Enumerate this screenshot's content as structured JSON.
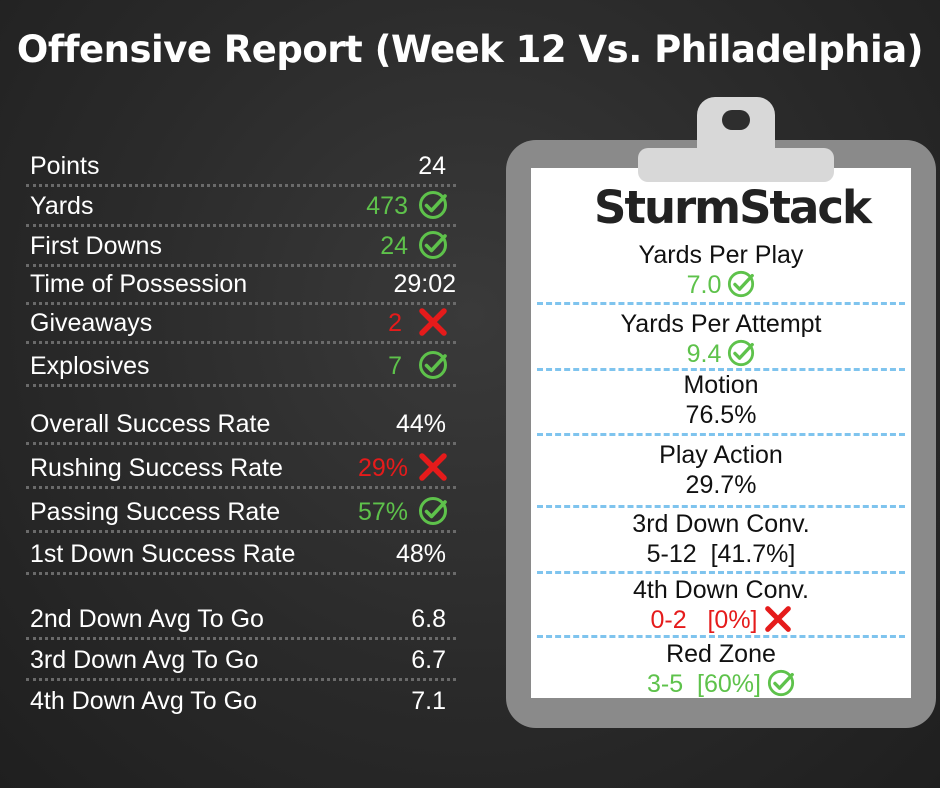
{
  "title": "Offensive Report (Week 12 Vs. Philadelphia)",
  "brand": "SturmStack",
  "colors": {
    "good": "#5ec24b",
    "bad": "#e51b1b",
    "neutral": "#ffffff",
    "divider": "#7fc4ee"
  },
  "stats": [
    {
      "label": "Points",
      "value": "24",
      "status": "neutral",
      "icon": ""
    },
    {
      "label": "Yards",
      "value": "473",
      "status": "good",
      "icon": "check-circle-icon"
    },
    {
      "label": "First Downs",
      "value": "24",
      "status": "good",
      "icon": "check-circle-icon"
    },
    {
      "label": "Time of Possession",
      "value": "29:02",
      "status": "neutral",
      "icon": ""
    },
    {
      "label": "Giveaways",
      "value": "2",
      "status": "bad",
      "icon": "x-mark-icon"
    },
    {
      "label": "Explosives",
      "value": "7",
      "status": "good",
      "icon": "check-circle-icon"
    },
    {
      "label": "Overall Success Rate",
      "value": "44%",
      "status": "neutral",
      "icon": ""
    },
    {
      "label": "Rushing Success Rate",
      "value": "29%",
      "status": "bad",
      "icon": "x-mark-icon"
    },
    {
      "label": "Passing Success Rate",
      "value": "57%",
      "status": "good",
      "icon": "check-circle-icon"
    },
    {
      "label": "1st Down Success Rate",
      "value": "48%",
      "status": "neutral",
      "icon": ""
    },
    {
      "label": "2nd Down Avg To Go",
      "value": "6.8",
      "status": "neutral",
      "icon": ""
    },
    {
      "label": "3rd Down Avg To Go",
      "value": "6.7",
      "status": "neutral",
      "icon": ""
    },
    {
      "label": "4th Down Avg To Go",
      "value": "7.1",
      "status": "neutral",
      "icon": ""
    }
  ],
  "clipboard": [
    {
      "label": "Yards Per Play",
      "value": "7.0",
      "status": "good",
      "icon": "check-circle-icon"
    },
    {
      "label": "Yards Per Attempt",
      "value": "9.4",
      "status": "good",
      "icon": "check-circle-icon"
    },
    {
      "label": "Motion",
      "value": "76.5%",
      "status": "neutral",
      "icon": ""
    },
    {
      "label": "Play Action",
      "value": "29.7%",
      "status": "neutral",
      "icon": ""
    },
    {
      "label": "3rd Down Conv.",
      "value": "5-12  [41.7%]",
      "status": "neutral",
      "icon": ""
    },
    {
      "label": "4th Down Conv.",
      "value": "0-2   [0%]",
      "status": "bad",
      "icon": "x-mark-icon"
    },
    {
      "label": "Red Zone",
      "value": "3-5  [60%]",
      "status": "good",
      "icon": "check-circle-icon"
    }
  ]
}
